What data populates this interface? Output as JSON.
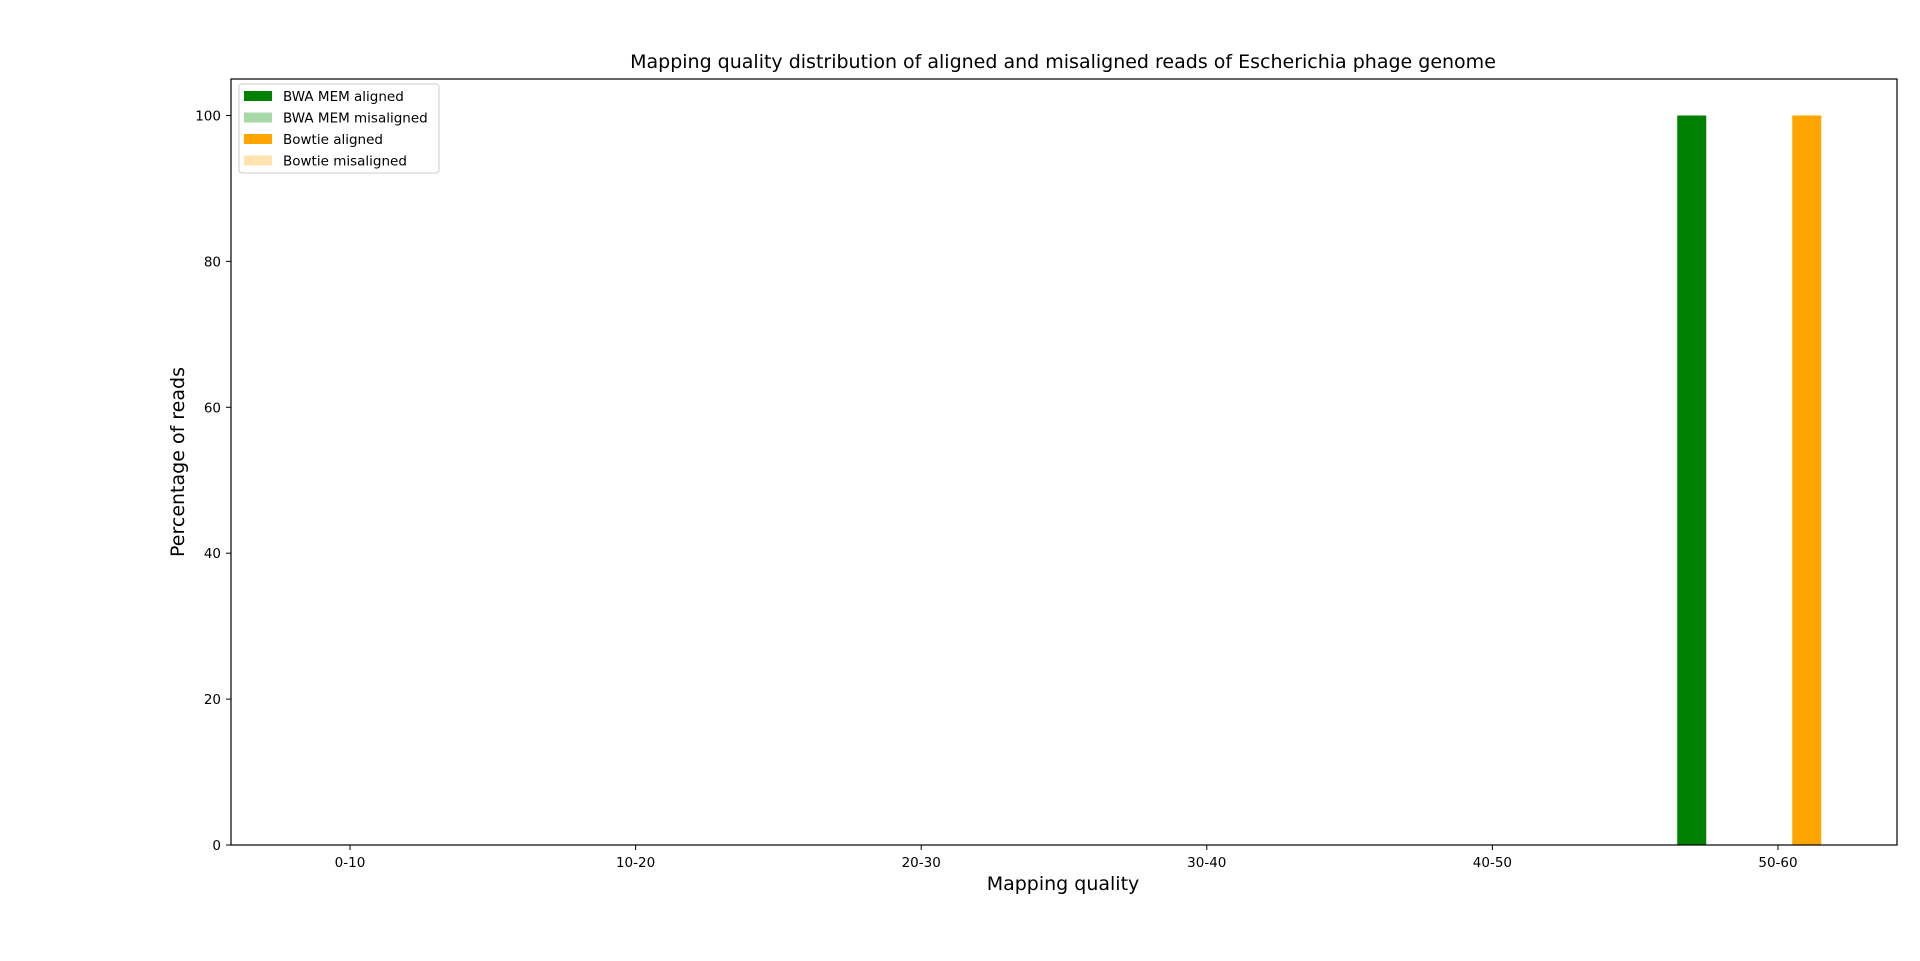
{
  "chart_data": {
    "type": "bar",
    "title": "Mapping quality distribution of aligned and misaligned reads of Escherichia phage genome",
    "xlabel": "Mapping quality",
    "ylabel": "Percentage of reads",
    "categories": [
      "0-10",
      "10-20",
      "20-30",
      "30-40",
      "40-50",
      "50-60"
    ],
    "ylim": [
      0,
      105
    ],
    "yticks": [
      0,
      20,
      40,
      60,
      80,
      100
    ],
    "grid": false,
    "legend_position": "top-left",
    "series": [
      {
        "name": "BWA MEM aligned",
        "color": "#008000",
        "values": [
          0,
          0,
          0,
          0,
          0,
          100
        ]
      },
      {
        "name": "BWA MEM misaligned",
        "color": "#a8d8a8",
        "values": [
          0,
          0,
          0,
          0,
          0,
          0
        ]
      },
      {
        "name": "Bowtie aligned",
        "color": "#ffa500",
        "values": [
          0,
          0,
          0,
          0,
          0,
          100
        ]
      },
      {
        "name": "Bowtie misaligned",
        "color": "#ffe4b0",
        "values": [
          0,
          0,
          0,
          0,
          0,
          0
        ]
      }
    ]
  }
}
